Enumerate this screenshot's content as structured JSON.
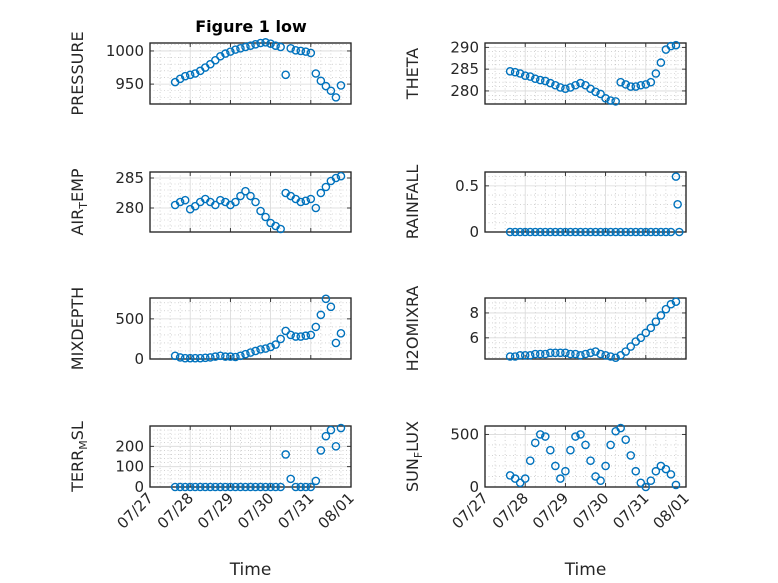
{
  "figure": {
    "title": "Figure 1 low",
    "marker_color": "#0072bd",
    "date_ticks": [
      "07/27",
      "07/28",
      "07/29",
      "07/30",
      "07/31",
      "08/01"
    ]
  },
  "chart_data": [
    {
      "type": "scatter",
      "ylabel": "PRESSURE",
      "ylim": [
        920,
        1012
      ],
      "yticks": [
        950,
        1000
      ],
      "xlabel": "",
      "xlim": [
        "07/27",
        "08/01"
      ],
      "grid": true,
      "x": [
        "07/27 15:00",
        "07/27 18:00",
        "07/27 21:00",
        "07/28 00:00",
        "07/28 03:00",
        "07/28 06:00",
        "07/28 09:00",
        "07/28 12:00",
        "07/28 15:00",
        "07/28 18:00",
        "07/28 21:00",
        "07/29 00:00",
        "07/29 03:00",
        "07/29 06:00",
        "07/29 09:00",
        "07/29 12:00",
        "07/29 15:00",
        "07/29 18:00",
        "07/29 21:00",
        "07/30 00:00",
        "07/30 03:00",
        "07/30 06:00",
        "07/30 09:00",
        "07/30 12:00",
        "07/30 15:00",
        "07/30 18:00",
        "07/30 21:00",
        "07/31 00:00",
        "07/31 03:00",
        "07/31 06:00",
        "07/31 09:00",
        "07/31 12:00",
        "07/31 15:00",
        "07/31 18:00"
      ],
      "y": [
        953,
        958,
        962,
        964,
        966,
        970,
        975,
        980,
        986,
        992,
        996,
        999,
        1002,
        1004,
        1006,
        1008,
        1010,
        1012,
        1013,
        1011,
        1008,
        1006,
        964,
        1004,
        1001,
        1000,
        999,
        997,
        966,
        955,
        947,
        940,
        930,
        948
      ]
    },
    {
      "type": "scatter",
      "ylabel": "THETA",
      "ylim": [
        277,
        291
      ],
      "yticks": [
        280,
        285,
        290
      ],
      "xlabel": "",
      "xlim": [
        "07/27",
        "08/01"
      ],
      "grid": true,
      "x": [
        "07/27 15:00",
        "07/27 18:00",
        "07/27 21:00",
        "07/28 00:00",
        "07/28 03:00",
        "07/28 06:00",
        "07/28 09:00",
        "07/28 12:00",
        "07/28 15:00",
        "07/28 18:00",
        "07/28 21:00",
        "07/29 00:00",
        "07/29 03:00",
        "07/29 06:00",
        "07/29 09:00",
        "07/29 12:00",
        "07/29 15:00",
        "07/29 18:00",
        "07/29 21:00",
        "07/30 00:00",
        "07/30 03:00",
        "07/30 06:00",
        "07/30 09:00",
        "07/30 12:00",
        "07/30 15:00",
        "07/30 18:00",
        "07/30 21:00",
        "07/31 00:00",
        "07/31 03:00",
        "07/31 06:00",
        "07/31 09:00",
        "07/31 12:00",
        "07/31 15:00",
        "07/31 18:00"
      ],
      "y": [
        284.5,
        284.3,
        284.0,
        283.5,
        283.3,
        282.8,
        282.5,
        282.3,
        281.8,
        281.3,
        280.8,
        280.5,
        280.8,
        281.3,
        281.8,
        281.3,
        280.5,
        279.8,
        279.3,
        278.3,
        277.8,
        277.6,
        282.0,
        281.5,
        281.0,
        281.0,
        281.3,
        281.5,
        282.0,
        284.0,
        286.5,
        289.5,
        290.3,
        290.5
      ]
    },
    {
      "type": "scatter",
      "ylabel": "AIR_T_EMP",
      "ylim": [
        276,
        286
      ],
      "yticks": [
        280,
        285
      ],
      "xlabel": "",
      "xlim": [
        "07/27",
        "08/01"
      ],
      "grid": true,
      "x": [
        "07/27 15:00",
        "07/27 18:00",
        "07/27 21:00",
        "07/28 00:00",
        "07/28 03:00",
        "07/28 06:00",
        "07/28 09:00",
        "07/28 12:00",
        "07/28 15:00",
        "07/28 18:00",
        "07/28 21:00",
        "07/29 00:00",
        "07/29 03:00",
        "07/29 06:00",
        "07/29 09:00",
        "07/29 12:00",
        "07/29 15:00",
        "07/29 18:00",
        "07/29 21:00",
        "07/30 00:00",
        "07/30 03:00",
        "07/30 06:00",
        "07/30 09:00",
        "07/30 12:00",
        "07/30 15:00",
        "07/30 18:00",
        "07/30 21:00",
        "07/31 00:00",
        "07/31 03:00",
        "07/31 06:00",
        "07/31 09:00",
        "07/31 12:00",
        "07/31 15:00",
        "07/31 18:00"
      ],
      "y": [
        280.5,
        281.0,
        281.3,
        279.8,
        280.3,
        281.0,
        281.5,
        281.0,
        280.5,
        281.3,
        281.0,
        280.5,
        281.0,
        282.0,
        282.8,
        282.0,
        281.0,
        279.5,
        278.5,
        277.5,
        277.0,
        276.5,
        282.5,
        282.0,
        281.5,
        281.0,
        281.2,
        281.5,
        280.0,
        282.5,
        283.5,
        284.5,
        285.0,
        285.3
      ]
    },
    {
      "type": "scatter",
      "ylabel": "RAINFALL",
      "ylim": [
        0,
        0.65
      ],
      "yticks": [
        0,
        0.5
      ],
      "xlabel": "",
      "xlim": [
        "07/27",
        "08/01"
      ],
      "grid": true,
      "x": [
        "07/27 15:00",
        "07/27 18:00",
        "07/27 21:00",
        "07/28 00:00",
        "07/28 03:00",
        "07/28 06:00",
        "07/28 09:00",
        "07/28 12:00",
        "07/28 15:00",
        "07/28 18:00",
        "07/28 21:00",
        "07/29 00:00",
        "07/29 03:00",
        "07/29 06:00",
        "07/29 09:00",
        "07/29 12:00",
        "07/29 15:00",
        "07/29 18:00",
        "07/29 21:00",
        "07/30 00:00",
        "07/30 03:00",
        "07/30 06:00",
        "07/30 09:00",
        "07/30 12:00",
        "07/30 15:00",
        "07/30 18:00",
        "07/30 21:00",
        "07/31 00:00",
        "07/31 03:00",
        "07/31 06:00",
        "07/31 09:00",
        "07/31 12:00",
        "07/31 15:00",
        "07/31 18:00",
        "07/31 19:00",
        "07/31 20:00"
      ],
      "y": [
        0,
        0,
        0,
        0,
        0,
        0,
        0,
        0,
        0,
        0,
        0,
        0,
        0,
        0,
        0,
        0,
        0,
        0,
        0,
        0,
        0,
        0,
        0,
        0,
        0,
        0,
        0,
        0,
        0,
        0,
        0,
        0,
        0,
        0.6,
        0.3,
        0
      ]
    },
    {
      "type": "scatter",
      "ylabel": "MIXDEPTH",
      "ylim": [
        0,
        760
      ],
      "yticks": [
        0,
        500
      ],
      "xlabel": "",
      "xlim": [
        "07/27",
        "08/01"
      ],
      "grid": true,
      "x": [
        "07/27 15:00",
        "07/27 18:00",
        "07/27 21:00",
        "07/28 00:00",
        "07/28 03:00",
        "07/28 06:00",
        "07/28 09:00",
        "07/28 12:00",
        "07/28 15:00",
        "07/28 18:00",
        "07/28 21:00",
        "07/29 00:00",
        "07/29 03:00",
        "07/29 06:00",
        "07/29 09:00",
        "07/29 12:00",
        "07/29 15:00",
        "07/29 18:00",
        "07/29 21:00",
        "07/30 00:00",
        "07/30 03:00",
        "07/30 06:00",
        "07/30 09:00",
        "07/30 12:00",
        "07/30 15:00",
        "07/30 18:00",
        "07/30 21:00",
        "07/31 00:00",
        "07/31 03:00",
        "07/31 06:00",
        "07/31 09:00",
        "07/31 12:00",
        "07/31 15:00",
        "07/31 18:00"
      ],
      "y": [
        40,
        20,
        10,
        10,
        10,
        10,
        15,
        20,
        30,
        40,
        30,
        30,
        25,
        40,
        60,
        80,
        100,
        120,
        130,
        150,
        180,
        250,
        350,
        300,
        280,
        280,
        290,
        300,
        400,
        550,
        750,
        650,
        200,
        320
      ]
    },
    {
      "type": "scatter",
      "ylabel": "H2OMIXRA",
      "ylim": [
        4.3,
        9.2
      ],
      "yticks": [
        6,
        8
      ],
      "xlabel": "",
      "xlim": [
        "07/27",
        "08/01"
      ],
      "grid": true,
      "x": [
        "07/27 15:00",
        "07/27 18:00",
        "07/27 21:00",
        "07/28 00:00",
        "07/28 03:00",
        "07/28 06:00",
        "07/28 09:00",
        "07/28 12:00",
        "07/28 15:00",
        "07/28 18:00",
        "07/28 21:00",
        "07/29 00:00",
        "07/29 03:00",
        "07/29 06:00",
        "07/29 09:00",
        "07/29 12:00",
        "07/29 15:00",
        "07/29 18:00",
        "07/29 21:00",
        "07/30 00:00",
        "07/30 03:00",
        "07/30 06:00",
        "07/30 09:00",
        "07/30 12:00",
        "07/30 15:00",
        "07/30 18:00",
        "07/30 21:00",
        "07/31 00:00",
        "07/31 03:00",
        "07/31 06:00",
        "07/31 09:00",
        "07/31 12:00",
        "07/31 15:00",
        "07/31 18:00"
      ],
      "y": [
        4.5,
        4.5,
        4.6,
        4.6,
        4.6,
        4.7,
        4.7,
        4.7,
        4.8,
        4.8,
        4.8,
        4.8,
        4.7,
        4.7,
        4.6,
        4.7,
        4.8,
        4.9,
        4.7,
        4.6,
        4.5,
        4.4,
        4.6,
        4.9,
        5.3,
        5.7,
        6.0,
        6.4,
        6.8,
        7.3,
        7.8,
        8.3,
        8.7,
        8.9
      ]
    },
    {
      "type": "scatter",
      "ylabel": "TERR_M_SL",
      "ylim": [
        0,
        300
      ],
      "yticks": [
        0,
        100,
        200
      ],
      "xlabel": "Time",
      "xlim": [
        "07/27",
        "08/01"
      ],
      "grid": true,
      "x": [
        "07/27 15:00",
        "07/27 18:00",
        "07/27 21:00",
        "07/28 00:00",
        "07/28 03:00",
        "07/28 06:00",
        "07/28 09:00",
        "07/28 12:00",
        "07/28 15:00",
        "07/28 18:00",
        "07/28 21:00",
        "07/29 00:00",
        "07/29 03:00",
        "07/29 06:00",
        "07/29 09:00",
        "07/29 12:00",
        "07/29 15:00",
        "07/29 18:00",
        "07/29 21:00",
        "07/30 00:00",
        "07/30 03:00",
        "07/30 06:00",
        "07/30 09:00",
        "07/30 12:00",
        "07/30 15:00",
        "07/30 18:00",
        "07/30 21:00",
        "07/31 00:00",
        "07/31 03:00",
        "07/31 06:00",
        "07/31 09:00",
        "07/31 12:00",
        "07/31 15:00",
        "07/31 18:00"
      ],
      "y": [
        0,
        0,
        0,
        0,
        0,
        0,
        0,
        0,
        0,
        0,
        0,
        0,
        0,
        0,
        0,
        0,
        0,
        0,
        0,
        0,
        0,
        0,
        160,
        40,
        0,
        0,
        0,
        0,
        30,
        180,
        250,
        280,
        200,
        290
      ]
    },
    {
      "type": "scatter",
      "ylabel": "SUN_F_LUX",
      "ylim": [
        0,
        580
      ],
      "yticks": [
        0,
        500
      ],
      "xlabel": "Time",
      "xlim": [
        "07/27",
        "08/01"
      ],
      "grid": true,
      "x": [
        "07/27 15:00",
        "07/27 18:00",
        "07/27 21:00",
        "07/28 00:00",
        "07/28 03:00",
        "07/28 06:00",
        "07/28 09:00",
        "07/28 12:00",
        "07/28 15:00",
        "07/28 18:00",
        "07/28 21:00",
        "07/29 00:00",
        "07/29 03:00",
        "07/29 06:00",
        "07/29 09:00",
        "07/29 12:00",
        "07/29 15:00",
        "07/29 18:00",
        "07/29 21:00",
        "07/30 00:00",
        "07/30 03:00",
        "07/30 06:00",
        "07/30 09:00",
        "07/30 12:00",
        "07/30 15:00",
        "07/30 18:00",
        "07/30 21:00",
        "07/31 00:00",
        "07/31 03:00",
        "07/31 06:00",
        "07/31 09:00",
        "07/31 12:00",
        "07/31 15:00",
        "07/31 18:00"
      ],
      "y": [
        110,
        80,
        40,
        80,
        250,
        420,
        500,
        480,
        350,
        200,
        80,
        150,
        350,
        480,
        500,
        400,
        250,
        100,
        60,
        200,
        400,
        530,
        560,
        450,
        300,
        150,
        40,
        0,
        60,
        150,
        200,
        170,
        120,
        20
      ]
    }
  ]
}
